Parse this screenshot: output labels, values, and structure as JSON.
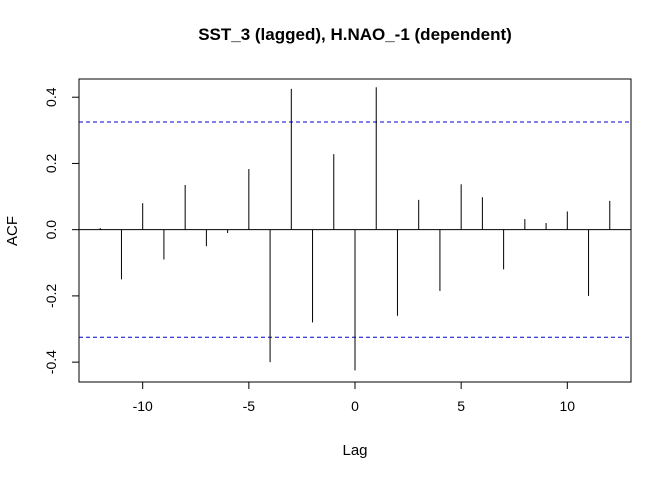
{
  "chart_data": {
    "type": "bar",
    "title": "SST_3 (lagged), H.NAO_-1 (dependent)",
    "xlabel": "Lag",
    "ylabel": "ACF",
    "xlim": [
      -13,
      13
    ],
    "ylim": [
      -0.46,
      0.455
    ],
    "xticks": [
      -10,
      -5,
      0,
      5,
      10
    ],
    "yticks": [
      -0.4,
      -0.2,
      0.0,
      0.2,
      0.4
    ],
    "confidence_bound": 0.325,
    "colors": {
      "bars": "#000000",
      "confidence": "#0000CD",
      "zero": "#000000"
    },
    "x": [
      -12,
      -11,
      -10,
      -9,
      -8,
      -7,
      -6,
      -5,
      -4,
      -3,
      -2,
      -1,
      0,
      1,
      2,
      3,
      4,
      5,
      6,
      7,
      8,
      9,
      10,
      11,
      12
    ],
    "values": [
      0.005,
      -0.15,
      0.08,
      -0.09,
      0.135,
      -0.05,
      -0.01,
      0.183,
      -0.4,
      0.425,
      -0.28,
      0.228,
      -0.425,
      0.43,
      -0.26,
      0.09,
      -0.185,
      0.137,
      0.098,
      -0.12,
      0.032,
      0.02,
      0.055,
      -0.2,
      0.087
    ]
  }
}
